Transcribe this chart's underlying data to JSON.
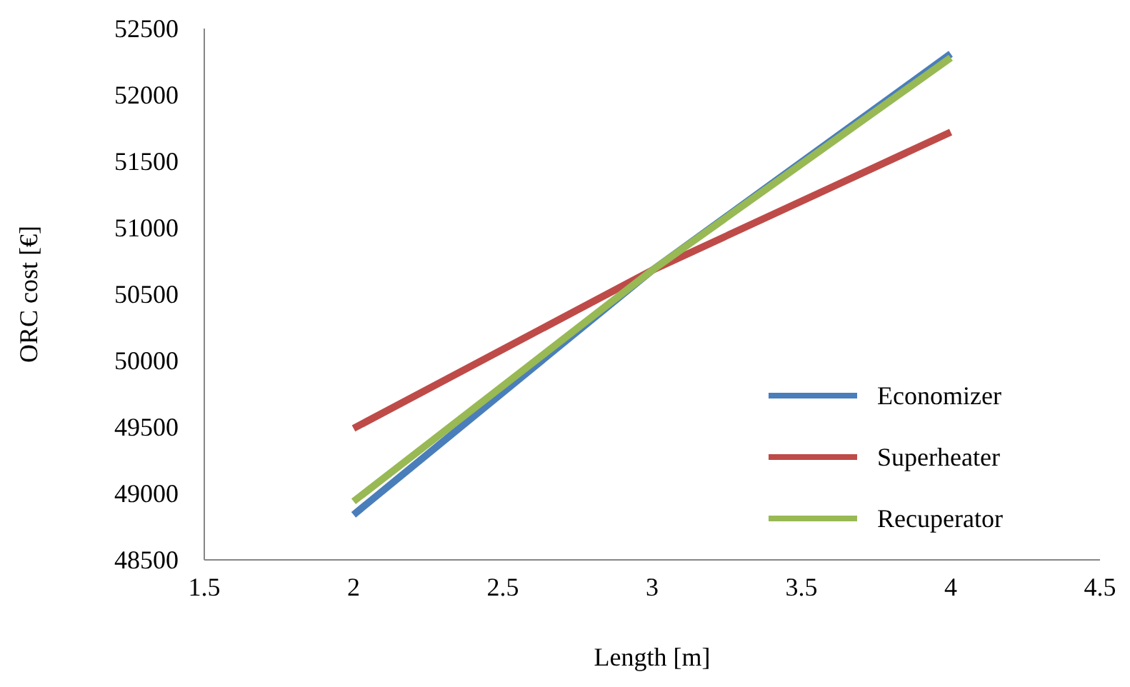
{
  "chart_data": {
    "type": "line",
    "xlabel": "Length [m]",
    "ylabel": "ORC cost [€]",
    "x": [
      2,
      3,
      4
    ],
    "series": [
      {
        "name": "Economizer",
        "color": "#4a7ebb",
        "values": [
          48840,
          50680,
          52310
        ]
      },
      {
        "name": "Superheater",
        "color": "#be4b48",
        "values": [
          49490,
          50680,
          51720
        ]
      },
      {
        "name": "Recuperator",
        "color": "#98b954",
        "values": [
          48940,
          50680,
          52280
        ]
      }
    ],
    "xlim": [
      1.5,
      4.5
    ],
    "xticks": [
      1.5,
      2,
      2.5,
      3,
      3.5,
      4,
      4.5
    ],
    "ylim": [
      48500,
      52500
    ],
    "yticks": [
      48500,
      49000,
      49500,
      50000,
      50500,
      51000,
      51500,
      52000,
      52500
    ],
    "grid": false,
    "legend": "bottom right",
    "marker": "none",
    "line_style": "solid"
  }
}
